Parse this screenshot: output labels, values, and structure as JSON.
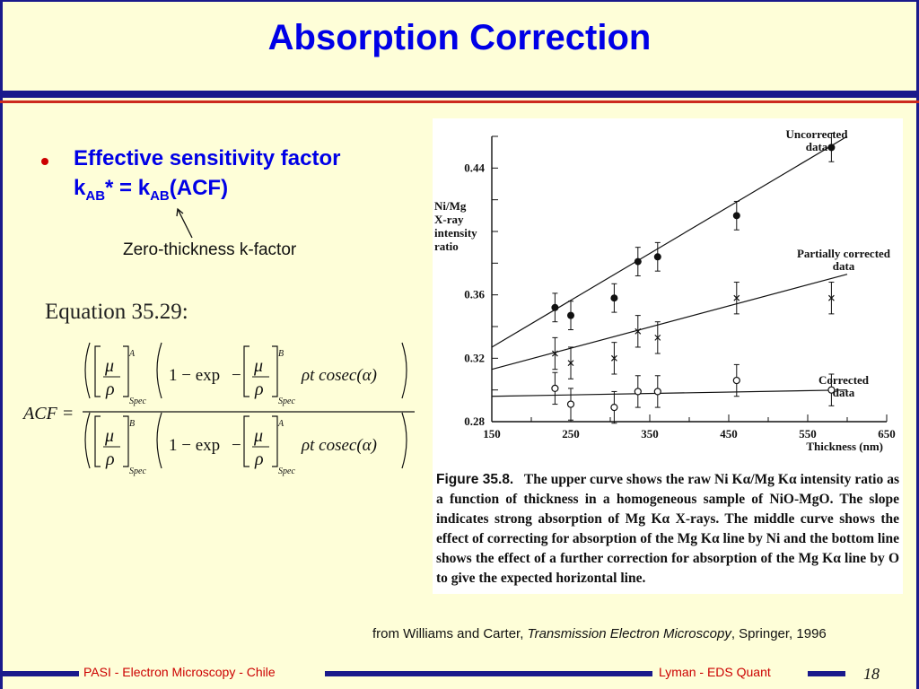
{
  "slide": {
    "title": "Absorption Correction",
    "bullet_line1": "Effective sensitivity factor",
    "bullet_k1": "k",
    "bullet_sub1": "AB",
    "bullet_mid": "* = k",
    "bullet_sub2": "AB",
    "bullet_end": "(ACF)",
    "annotation": "Zero-thickness k-factor",
    "equation_label": "Equation 35.29:"
  },
  "equation": {
    "lhs": "ACF =",
    "mu": "μ",
    "rho": "ρ",
    "sup_num": "A",
    "sup_den": "B",
    "spec": "Spec",
    "one_minus_exp": "1 − exp",
    "minus": "−",
    "tail": "ρt cosec(α)",
    "sup_exp_num": "B",
    "sup_exp_den": "A"
  },
  "figure": {
    "ylabel_lines": [
      "Ni/Mg",
      "X-ray",
      "intensity",
      "ratio"
    ],
    "xlabel": "Thickness (nm)",
    "series_labels": {
      "uncorrected": [
        "Uncorrected",
        "data"
      ],
      "partial": [
        "Partially corrected",
        "data"
      ],
      "corrected": [
        "Corrected",
        "data"
      ]
    },
    "caption_label": "Figure 35.8.",
    "caption_text": "The upper curve shows the raw Ni Kα/Mg Kα intensity ratio as a function of thickness in a homogeneous sample of NiO-MgO. The slope indicates strong absorption of Mg Kα X-rays. The middle curve shows the effect of correcting for absorption of the Mg Kα line by Ni and the bottom line shows the effect of a further correction for absorption of the Mg Kα line by O to give the expected horizontal line."
  },
  "chart_data": {
    "type": "scatter",
    "xlabel": "Thickness (nm)",
    "ylabel": "Ni/Mg X-ray intensity ratio",
    "xlim": [
      150,
      650
    ],
    "ylim": [
      0.28,
      0.46
    ],
    "x_ticks": [
      "150",
      "250",
      "350",
      "450",
      "550",
      "650"
    ],
    "y_ticks": [
      "0.28",
      "0.32",
      "0.36",
      "0.44"
    ],
    "series": [
      {
        "name": "Uncorrected data",
        "marker": "filled-circle",
        "x": [
          230,
          250,
          305,
          335,
          360,
          460,
          580
        ],
        "y": [
          0.352,
          0.347,
          0.358,
          0.381,
          0.384,
          0.41,
          0.453
        ]
      },
      {
        "name": "Partially corrected data",
        "marker": "cross",
        "x": [
          230,
          250,
          305,
          335,
          360,
          460,
          580
        ],
        "y": [
          0.323,
          0.317,
          0.32,
          0.337,
          0.333,
          0.358,
          0.358
        ]
      },
      {
        "name": "Corrected data",
        "marker": "open-circle",
        "x": [
          230,
          250,
          305,
          335,
          360,
          460,
          580
        ],
        "y": [
          0.301,
          0.291,
          0.289,
          0.299,
          0.299,
          0.306,
          0.3
        ]
      }
    ],
    "fit_lines": [
      {
        "series": "Uncorrected data",
        "x": [
          150,
          600
        ],
        "y": [
          0.327,
          0.46
        ]
      },
      {
        "series": "Partially corrected data",
        "x": [
          150,
          600
        ],
        "y": [
          0.313,
          0.373
        ]
      },
      {
        "series": "Corrected data",
        "x": [
          150,
          600
        ],
        "y": [
          0.296,
          0.3
        ]
      }
    ]
  },
  "source": {
    "prefix": "from Williams and Carter, ",
    "book": "Transmission Electron Microscopy",
    "suffix": ", Springer, 1996"
  },
  "footer": {
    "left": "PASI - Electron Microscopy - Chile",
    "right": "Lyman - EDS Quant",
    "page": "18"
  },
  "colors": {
    "title": "#0000e6",
    "navy_rule": "#1a1a8c",
    "red_rule": "#cc2a1e",
    "footer_text": "#cc0000",
    "background": "#fefed8"
  }
}
